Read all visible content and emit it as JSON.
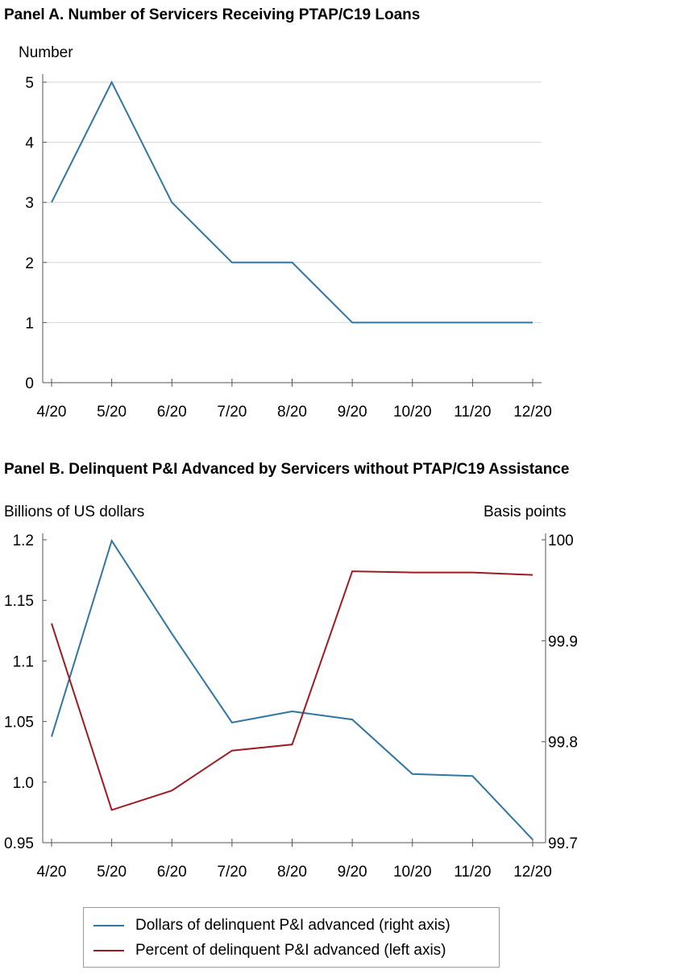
{
  "chart_data": [
    {
      "type": "line",
      "title": "Panel A. Number of Servicers Receiving PTAP/C19 Loans",
      "ylabel": "Number",
      "categories": [
        "4/20",
        "5/20",
        "6/20",
        "7/20",
        "8/20",
        "9/20",
        "10/20",
        "11/20",
        "12/20"
      ],
      "ylim": [
        0,
        5
      ],
      "yticks": [
        "0",
        "1",
        "2",
        "3",
        "4",
        "5"
      ],
      "grid": true,
      "series": [
        {
          "values": [
            3,
            5,
            3,
            2,
            2,
            1,
            1,
            1,
            1
          ],
          "color": "#2f76a2"
        }
      ]
    },
    {
      "type": "line",
      "title": "Panel B. Delinquent P&I Advanced by Servicers without PTAP/C19 Assistance",
      "ylabel_left": "Billions of US dollars",
      "ylabel_right": "Basis points",
      "categories": [
        "4/20",
        "5/20",
        "6/20",
        "7/20",
        "8/20",
        "9/20",
        "10/20",
        "11/20",
        "12/20"
      ],
      "ylim_left": [
        0.95,
        1.2
      ],
      "yticks_left": [
        "0.95",
        "1.0",
        "1.05",
        "1.1",
        "1.15",
        "1.2"
      ],
      "ylim_right": [
        99.7,
        100
      ],
      "yticks_right": [
        "99.7",
        "99.8",
        "99.9",
        "100"
      ],
      "grid": false,
      "legend_position": "bottom",
      "series": [
        {
          "name": "Dollars of delinquent P&I advanced (right axis)",
          "axis": "right",
          "color": "#2f76a2",
          "values": [
            99.805,
            99.999,
            99.907,
            99.819,
            99.83,
            99.822,
            99.768,
            99.766,
            99.703
          ]
        },
        {
          "name": "Percent of delinquent P&I advanced (left axis)",
          "axis": "left",
          "color": "#9e1b22",
          "values": [
            1.131,
            0.977,
            0.993,
            1.026,
            1.031,
            1.174,
            1.173,
            1.173,
            1.171
          ]
        }
      ]
    }
  ]
}
